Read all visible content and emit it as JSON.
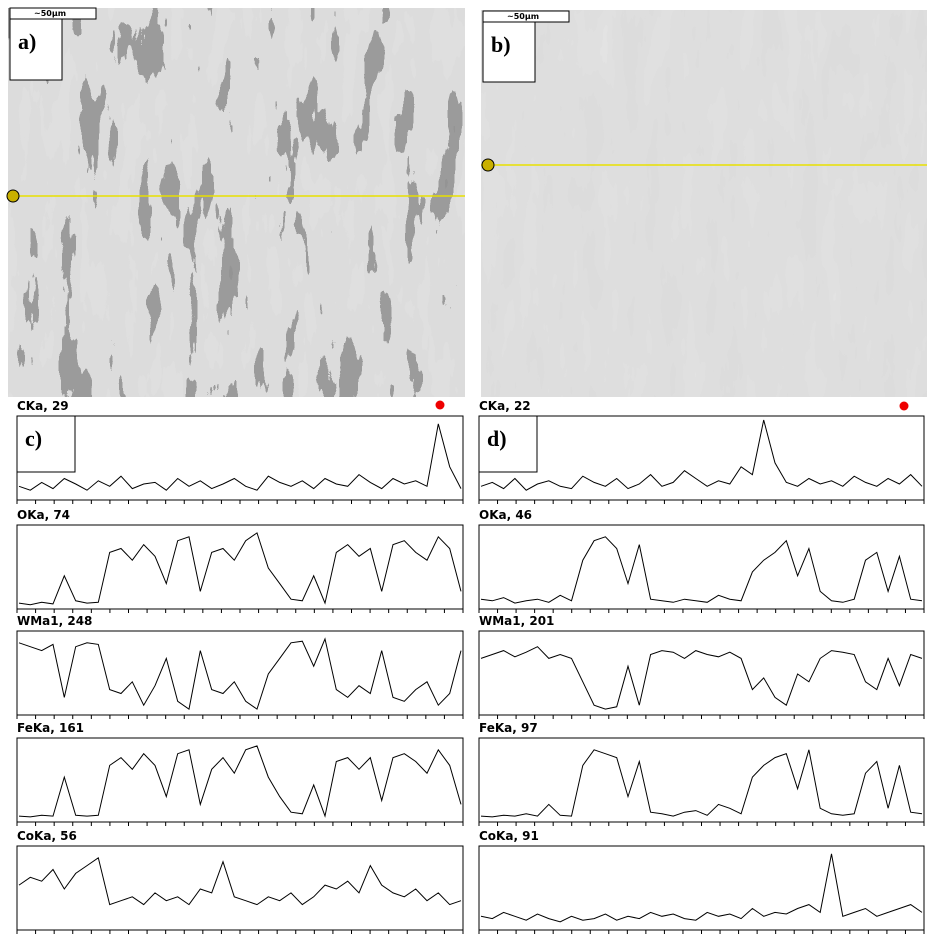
{
  "panels": [
    {
      "label": "a)",
      "scale_bar": "~50μm"
    },
    {
      "label": "b)",
      "scale_bar": "~50μm"
    }
  ],
  "linescans": [
    {
      "label": "c)",
      "channels": [
        {
          "name": "CKa, 29",
          "values": [
            15,
            10,
            20,
            12,
            25,
            18,
            10,
            22,
            15,
            28,
            12,
            18,
            20,
            10,
            25,
            15,
            22,
            12,
            18,
            25,
            15,
            10,
            28,
            20,
            15,
            22,
            12,
            25,
            18,
            15,
            30,
            20,
            12,
            25,
            18,
            22,
            15,
            95,
            40,
            12
          ]
        },
        {
          "name": "OKa, 74",
          "values": [
            5,
            3,
            6,
            4,
            40,
            8,
            5,
            6,
            70,
            75,
            60,
            80,
            65,
            30,
            85,
            90,
            20,
            70,
            75,
            60,
            85,
            95,
            50,
            30,
            10,
            8,
            40,
            5,
            70,
            80,
            65,
            75,
            20,
            80,
            85,
            70,
            60,
            90,
            75,
            20
          ]
        },
        {
          "name": "WMa1, 248",
          "values": [
            90,
            85,
            80,
            88,
            20,
            85,
            90,
            88,
            30,
            25,
            40,
            10,
            35,
            70,
            15,
            5,
            80,
            30,
            25,
            40,
            15,
            5,
            50,
            70,
            90,
            92,
            60,
            95,
            30,
            20,
            35,
            25,
            80,
            20,
            15,
            30,
            40,
            10,
            25,
            80
          ]
        },
        {
          "name": "FeKa, 161",
          "values": [
            5,
            4,
            6,
            5,
            55,
            6,
            5,
            6,
            70,
            80,
            65,
            85,
            70,
            30,
            85,
            90,
            20,
            65,
            80,
            60,
            90,
            95,
            55,
            30,
            10,
            8,
            45,
            5,
            75,
            80,
            65,
            80,
            25,
            80,
            85,
            75,
            60,
            90,
            70,
            20
          ]
        },
        {
          "name": "CoKa, 56",
          "values": [
            55,
            65,
            60,
            75,
            50,
            70,
            80,
            90,
            30,
            35,
            40,
            30,
            45,
            35,
            40,
            30,
            50,
            45,
            85,
            40,
            35,
            30,
            40,
            35,
            45,
            30,
            40,
            55,
            50,
            60,
            45,
            80,
            55,
            45,
            40,
            50,
            35,
            45,
            30,
            35
          ]
        }
      ]
    },
    {
      "label": "d)",
      "channels": [
        {
          "name": "CKa, 22",
          "values": [
            15,
            20,
            12,
            25,
            10,
            18,
            22,
            15,
            12,
            28,
            20,
            15,
            25,
            12,
            18,
            30,
            15,
            20,
            35,
            25,
            15,
            22,
            18,
            40,
            30,
            100,
            45,
            20,
            15,
            25,
            18,
            22,
            15,
            28,
            20,
            15,
            25,
            18,
            30,
            15
          ]
        },
        {
          "name": "OKa, 46",
          "values": [
            10,
            8,
            12,
            5,
            8,
            10,
            6,
            15,
            8,
            60,
            85,
            90,
            75,
            30,
            80,
            10,
            8,
            6,
            10,
            8,
            6,
            15,
            10,
            8,
            45,
            60,
            70,
            85,
            40,
            75,
            20,
            8,
            6,
            10,
            60,
            70,
            20,
            65,
            10,
            8
          ]
        },
        {
          "name": "WMa1, 201",
          "values": [
            70,
            75,
            80,
            72,
            78,
            85,
            70,
            75,
            70,
            40,
            10,
            5,
            8,
            60,
            10,
            75,
            80,
            78,
            70,
            80,
            75,
            72,
            78,
            70,
            30,
            45,
            20,
            10,
            50,
            40,
            70,
            80,
            78,
            75,
            40,
            30,
            70,
            35,
            75,
            70
          ]
        },
        {
          "name": "FeKa, 97",
          "values": [
            5,
            4,
            6,
            5,
            8,
            5,
            20,
            6,
            5,
            70,
            90,
            85,
            80,
            30,
            75,
            10,
            8,
            5,
            10,
            12,
            6,
            20,
            15,
            8,
            55,
            70,
            80,
            85,
            40,
            90,
            15,
            8,
            6,
            8,
            60,
            75,
            15,
            70,
            10,
            8
          ]
        },
        {
          "name": "CoKa, 91",
          "values": [
            15,
            12,
            20,
            15,
            10,
            18,
            12,
            8,
            15,
            10,
            12,
            18,
            10,
            15,
            12,
            20,
            15,
            18,
            12,
            10,
            20,
            15,
            18,
            12,
            25,
            15,
            20,
            18,
            25,
            30,
            20,
            95,
            15,
            20,
            25,
            15,
            20,
            25,
            30,
            20
          ]
        }
      ]
    }
  ]
}
